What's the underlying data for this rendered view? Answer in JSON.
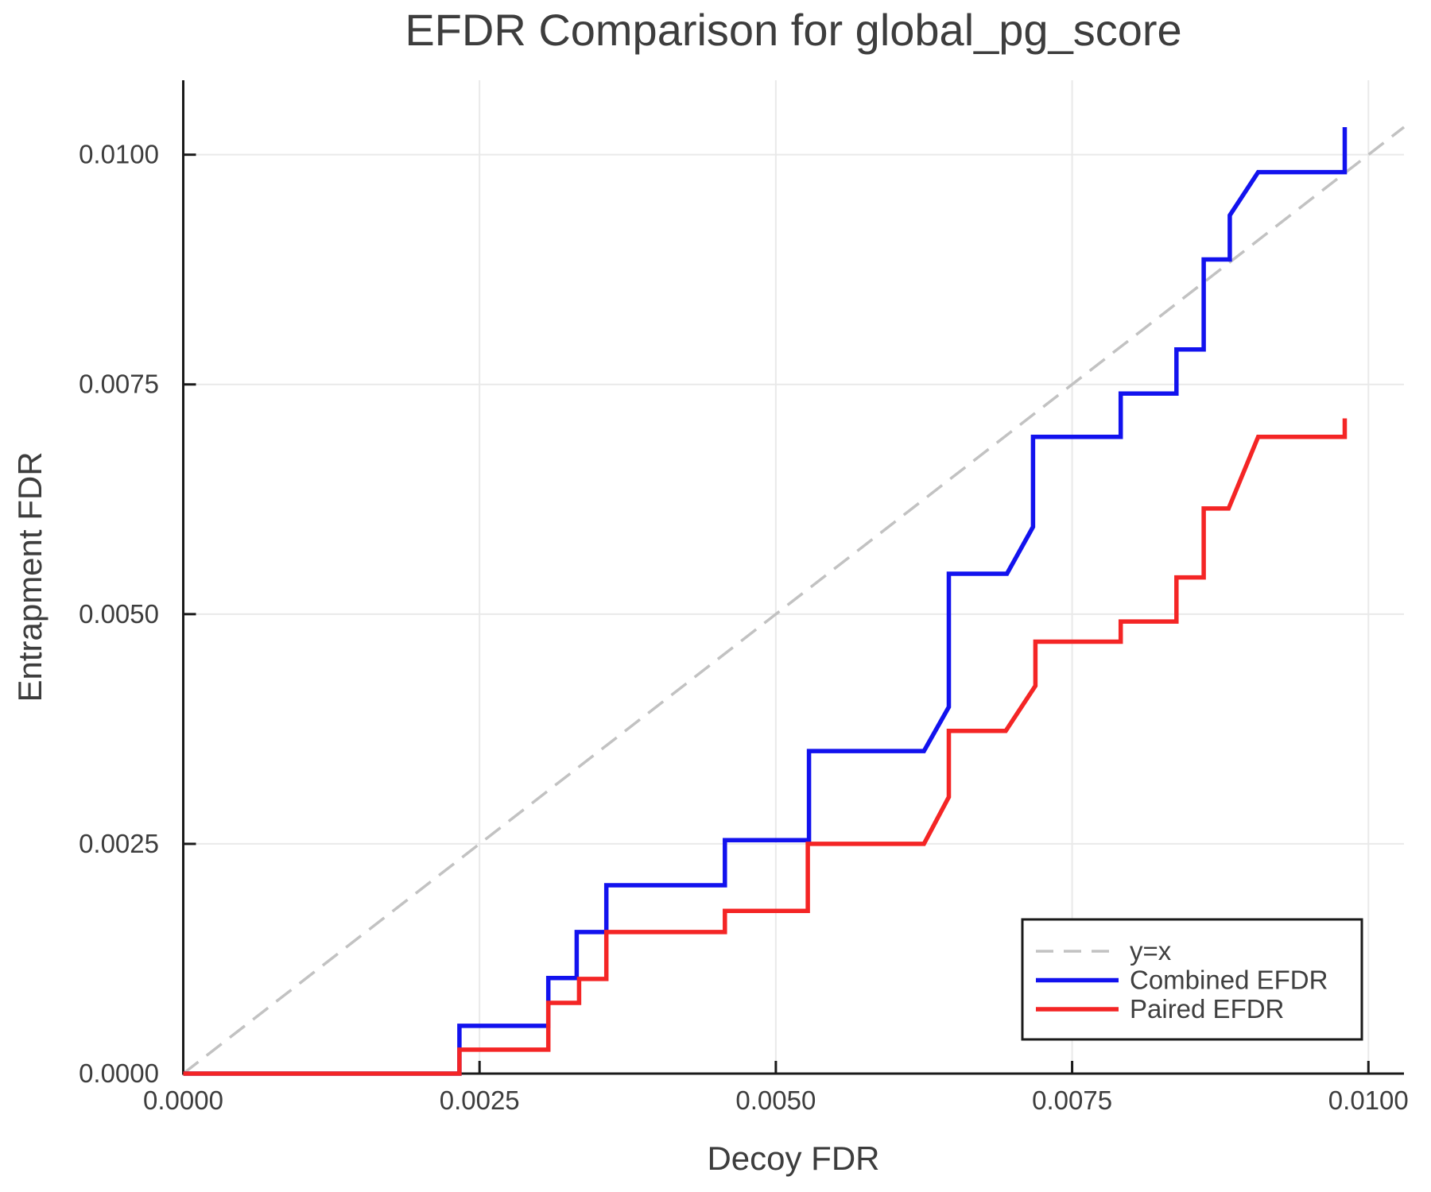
{
  "page": {
    "title": "EFDR Comparison for global_pg_score"
  },
  "chart_data": {
    "type": "line",
    "title": "EFDR Comparison for global_pg_score",
    "xlabel": "Decoy FDR",
    "ylabel": "Entrapment FDR",
    "xlim": [
      0,
      0.0103
    ],
    "ylim": [
      0,
      0.01081
    ],
    "grid": true,
    "background": "#ffffff",
    "text_color": "#3d3d3d",
    "spine_color": "#1a1a1a",
    "grid_color": "#e9e9e9",
    "x_ticks": {
      "values": [
        0,
        0.0025,
        0.005,
        0.0075,
        0.01
      ],
      "labels": [
        "0.0000",
        "0.0025",
        "0.0050",
        "0.0075",
        "0.0100"
      ]
    },
    "y_ticks": {
      "values": [
        0,
        0.0025,
        0.005,
        0.0075,
        0.01
      ],
      "labels": [
        "0.0000",
        "0.0025",
        "0.0050",
        "0.0075",
        "0.0100"
      ]
    },
    "legend": {
      "position": "lower right",
      "border_color": "#1a1a1a",
      "fill": "#ffffff"
    },
    "series": [
      {
        "name": "y=x",
        "kind": "reference",
        "style": "dashed",
        "color": "#c2c2c2",
        "width": 3.5,
        "points": [
          [
            0,
            0
          ],
          [
            0.0103,
            0.0103
          ]
        ]
      },
      {
        "name": "Combined EFDR",
        "kind": "efdr-curve",
        "style": "solid",
        "color": "#1212ee",
        "width": 5.5,
        "points": [
          [
            0,
            0
          ],
          [
            0.00233,
            0
          ],
          [
            0.00233,
            0.00052
          ],
          [
            0.00308,
            0.00052
          ],
          [
            0.00308,
            0.00104
          ],
          [
            0.00332,
            0.00104
          ],
          [
            0.00332,
            0.00154
          ],
          [
            0.00357,
            0.00154
          ],
          [
            0.00357,
            0.00205
          ],
          [
            0.00457,
            0.00205
          ],
          [
            0.00457,
            0.00254
          ],
          [
            0.00528,
            0.00254
          ],
          [
            0.00528,
            0.00351
          ],
          [
            0.00625,
            0.00351
          ],
          [
            0.00646,
            0.00399
          ],
          [
            0.00646,
            0.00544
          ],
          [
            0.00695,
            0.00544
          ],
          [
            0.00717,
            0.00595
          ],
          [
            0.00717,
            0.00693
          ],
          [
            0.00791,
            0.00693
          ],
          [
            0.00791,
            0.0074
          ],
          [
            0.00838,
            0.0074
          ],
          [
            0.00838,
            0.00788
          ],
          [
            0.00861,
            0.00788
          ],
          [
            0.00861,
            0.00886
          ],
          [
            0.00883,
            0.00886
          ],
          [
            0.00883,
            0.00934
          ],
          [
            0.00907,
            0.00981
          ],
          [
            0.0098,
            0.00981
          ],
          [
            0.0098,
            0.0103
          ]
        ]
      },
      {
        "name": "Paired EFDR",
        "kind": "efdr-curve",
        "style": "solid",
        "color": "#f42525",
        "width": 5.5,
        "points": [
          [
            0,
            0
          ],
          [
            0.00233,
            0
          ],
          [
            0.00233,
            0.00026
          ],
          [
            0.00308,
            0.00026
          ],
          [
            0.00308,
            0.00077
          ],
          [
            0.00334,
            0.00077
          ],
          [
            0.00334,
            0.00103
          ],
          [
            0.00357,
            0.00103
          ],
          [
            0.00357,
            0.00154
          ],
          [
            0.00457,
            0.00154
          ],
          [
            0.00457,
            0.00177
          ],
          [
            0.00527,
            0.00177
          ],
          [
            0.00527,
            0.0025
          ],
          [
            0.00625,
            0.0025
          ],
          [
            0.00646,
            0.00301
          ],
          [
            0.00646,
            0.00373
          ],
          [
            0.00694,
            0.00373
          ],
          [
            0.00719,
            0.00422
          ],
          [
            0.00719,
            0.0047
          ],
          [
            0.00791,
            0.0047
          ],
          [
            0.00791,
            0.00492
          ],
          [
            0.00838,
            0.00492
          ],
          [
            0.00838,
            0.0054
          ],
          [
            0.00861,
            0.0054
          ],
          [
            0.00861,
            0.00615
          ],
          [
            0.00882,
            0.00615
          ],
          [
            0.00907,
            0.00693
          ],
          [
            0.0098,
            0.00693
          ],
          [
            0.0098,
            0.00713
          ]
        ]
      }
    ]
  }
}
